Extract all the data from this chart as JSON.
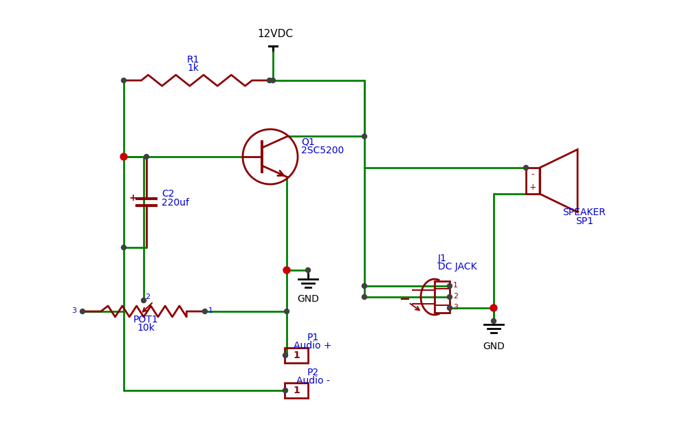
{
  "bg_color": "#ffffff",
  "wire_color": "#008000",
  "component_color": "#8b0000",
  "label_color_blue": "#0000cd",
  "label_color_black": "#000000",
  "junction_red": "#cc0000",
  "junction_dark": "#404040",
  "supply_label": "12VDC",
  "gnd_label": "GND",
  "r1_labels": [
    "R1",
    "1k"
  ],
  "c2_labels": [
    "C2",
    "220uf"
  ],
  "q1_labels": [
    "Q1",
    "2SC5200"
  ],
  "pot1_labels": [
    "POT1",
    "10k"
  ],
  "p1_labels": [
    "P1",
    "Audio +"
  ],
  "p2_labels": [
    "P2",
    "Audio -"
  ],
  "j1_labels": [
    "J1",
    "DC JACK"
  ],
  "sp1_labels": [
    "SPEAKER",
    "SP1"
  ],
  "lw": 2.0,
  "fig_w": 10.05,
  "fig_h": 6.43,
  "dpi": 100
}
